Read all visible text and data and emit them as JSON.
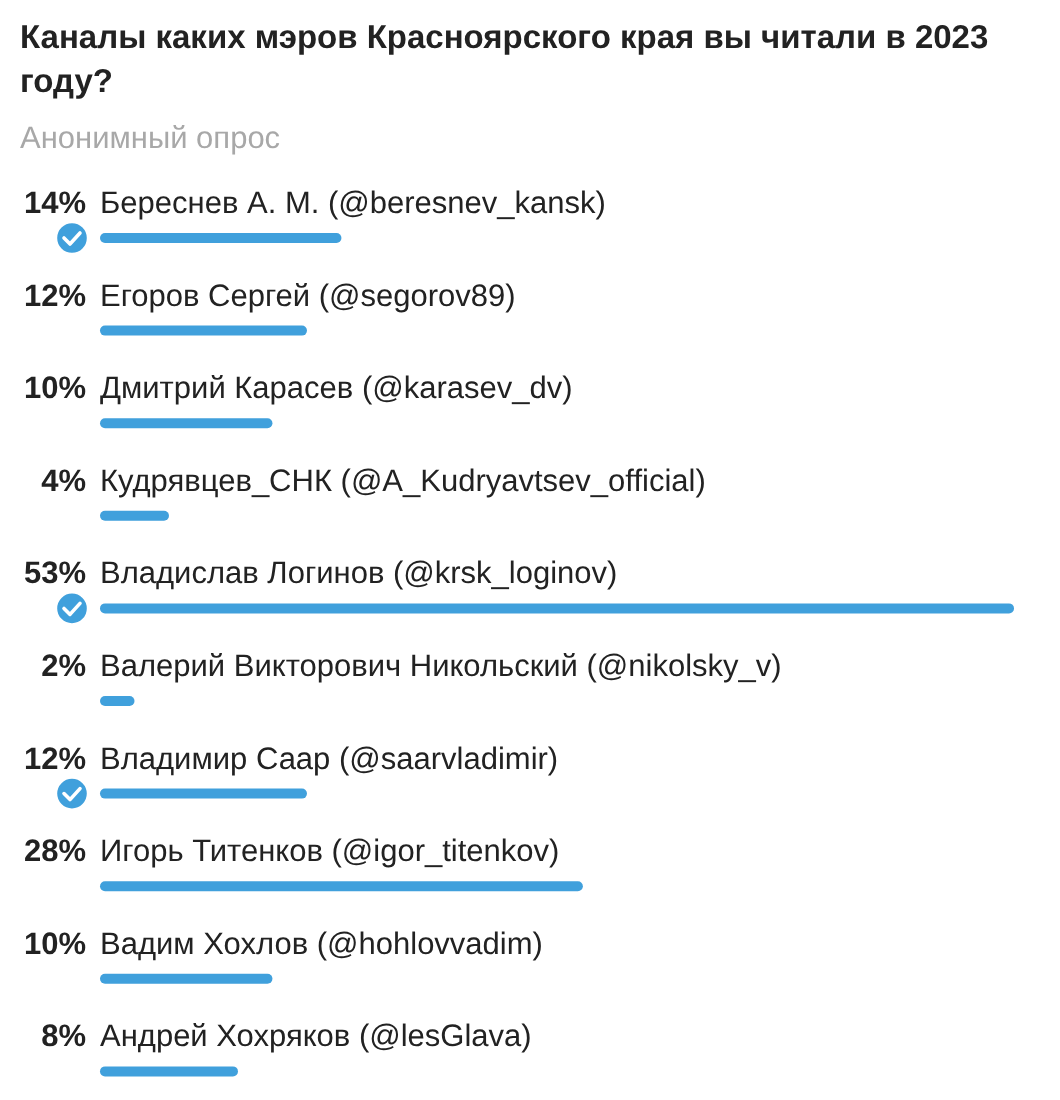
{
  "chart_data": {
    "type": "bar",
    "orientation": "horizontal",
    "title": "Каналы каких мэров Красноярского края вы читали в 2023 году?",
    "subtitle": "Анонимный опрос",
    "categories": [
      "Береснев А. М. (@beresnev_kansk)",
      "Егоров Сергей (@segorov89)",
      "Дмитрий Карасев (@karasev_dv)",
      "Кудрявцев_СНК (@A_Kudryavtsev_official)",
      "Владислав Логинов (@krsk_loginov)",
      "Валерий Викторович Никольский (@nikolsky_v)",
      "Владимир Саар (@saarvladimir)",
      "Игорь Титенков (@igor_titenkov)",
      "Вадим Хохлов (@hohlovvadim)",
      "Андрей Хохряков (@lesGlava)"
    ],
    "values": [
      14,
      12,
      10,
      4,
      53,
      2,
      12,
      28,
      10,
      8
    ],
    "value_labels": [
      "14%",
      "12%",
      "10%",
      "4%",
      "53%",
      "2%",
      "12%",
      "28%",
      "10%",
      "8%"
    ],
    "color": "#40a0dc",
    "tick_labels": "y"
  }
}
